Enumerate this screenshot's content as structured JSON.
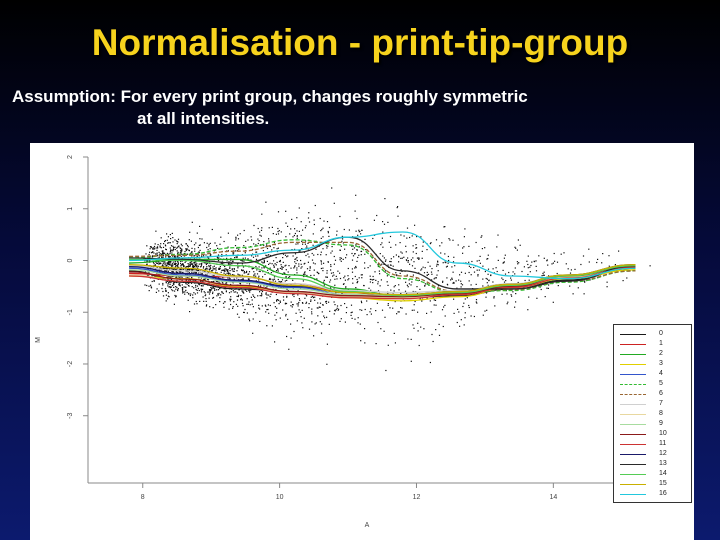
{
  "slide": {
    "title": "Normalisation - print-tip-group",
    "assumption_line1": "Assumption: For every print group, changes roughly symmetric",
    "assumption_line2": "at all intensities."
  },
  "colors": {
    "title": "#f7d31d",
    "text": "#ffffff",
    "panel": "#ffffff"
  },
  "chart_data": {
    "type": "scatter",
    "xlabel": "A",
    "ylabel": "M",
    "xlim": [
      7.2,
      15.5
    ],
    "ylim": [
      -4.3,
      2.0
    ],
    "xticks": [
      8,
      10,
      12,
      14
    ],
    "yticks": [
      2,
      1,
      0,
      -1,
      -2,
      -3
    ],
    "xtick_labels": [
      "8",
      "10",
      "12",
      "14"
    ],
    "ytick_labels": [
      "2",
      "1",
      "0",
      "-1",
      "-2",
      "-3"
    ],
    "grid": false,
    "legend_position": "right",
    "series": [
      {
        "name": "0",
        "color": "#1a1a1a",
        "dash": "solid",
        "x": [
          7.8,
          8.6,
          9.4,
          10.2,
          11.0,
          11.8,
          12.6,
          13.4,
          14.2,
          15.2
        ],
        "y": [
          -0.2,
          -0.42,
          -0.55,
          -0.6,
          -0.7,
          -0.72,
          -0.68,
          -0.55,
          -0.38,
          -0.15
        ]
      },
      {
        "name": "1",
        "color": "#cc2222",
        "dash": "solid",
        "x": [
          7.8,
          8.6,
          9.4,
          10.2,
          11.0,
          11.8,
          12.6,
          13.4,
          14.2,
          15.2
        ],
        "y": [
          -0.25,
          -0.3,
          -0.32,
          -0.45,
          -0.62,
          -0.72,
          -0.66,
          -0.5,
          -0.32,
          -0.12
        ]
      },
      {
        "name": "2",
        "color": "#22aa22",
        "dash": "solid",
        "x": [
          7.8,
          8.6,
          9.4,
          10.2,
          11.0,
          11.8,
          12.6,
          13.4,
          14.2,
          15.2
        ],
        "y": [
          -0.05,
          0.02,
          0.02,
          -0.28,
          -0.55,
          -0.7,
          -0.65,
          -0.52,
          -0.35,
          -0.15
        ]
      },
      {
        "name": "3",
        "color": "#e0d000",
        "dash": "solid",
        "x": [
          7.8,
          8.6,
          9.4,
          10.2,
          11.0,
          11.8,
          12.6,
          13.4,
          14.2,
          15.2
        ],
        "y": [
          -0.3,
          -0.35,
          -0.5,
          -0.62,
          -0.72,
          -0.78,
          -0.7,
          -0.52,
          -0.35,
          -0.18
        ]
      },
      {
        "name": "4",
        "color": "#3355cc",
        "dash": "solid",
        "x": [
          7.8,
          8.6,
          9.4,
          10.2,
          11.0,
          11.8,
          12.6,
          13.4,
          14.2,
          15.2
        ],
        "y": [
          -0.15,
          -0.28,
          -0.4,
          -0.52,
          -0.66,
          -0.7,
          -0.64,
          -0.48,
          -0.3,
          -0.1
        ]
      },
      {
        "name": "5",
        "color": "#33bb33",
        "dash": "dashed",
        "x": [
          7.8,
          8.6,
          9.4,
          10.2,
          11.0,
          11.8,
          12.6,
          13.4,
          14.2,
          15.2
        ],
        "y": [
          0.05,
          0.12,
          0.25,
          0.4,
          0.3,
          -0.35,
          -0.62,
          -0.58,
          -0.42,
          -0.2
        ]
      },
      {
        "name": "6",
        "color": "#996633",
        "dash": "dashed",
        "x": [
          7.8,
          8.6,
          9.4,
          10.2,
          11.0,
          11.8,
          12.6,
          13.4,
          14.2,
          15.2
        ],
        "y": [
          0.08,
          0.1,
          0.18,
          0.35,
          0.35,
          -0.3,
          -0.6,
          -0.56,
          -0.4,
          -0.2
        ]
      },
      {
        "name": "7",
        "color": "#d0d0d0",
        "dash": "solid",
        "x": [
          7.8,
          8.6,
          9.4,
          10.2,
          11.0,
          11.8,
          12.6,
          13.4,
          14.2,
          15.2
        ],
        "y": [
          -0.1,
          -0.2,
          -0.32,
          -0.45,
          -0.58,
          -0.62,
          -0.58,
          -0.45,
          -0.28,
          -0.1
        ]
      },
      {
        "name": "8",
        "color": "#e8d8a0",
        "dash": "solid",
        "x": [
          7.8,
          8.6,
          9.4,
          10.2,
          11.0,
          11.8,
          12.6,
          13.4,
          14.2,
          15.2
        ],
        "y": [
          -0.28,
          -0.4,
          -0.52,
          -0.62,
          -0.7,
          -0.72,
          -0.66,
          -0.5,
          -0.32,
          -0.12
        ]
      },
      {
        "name": "9",
        "color": "#a8dca0",
        "dash": "solid",
        "x": [
          7.8,
          8.6,
          9.4,
          10.2,
          11.0,
          11.8,
          12.6,
          13.4,
          14.2,
          15.2
        ],
        "y": [
          -0.18,
          -0.3,
          -0.42,
          -0.55,
          -0.66,
          -0.68,
          -0.62,
          -0.48,
          -0.3,
          -0.1
        ]
      },
      {
        "name": "10",
        "color": "#8b1a1a",
        "dash": "solid",
        "x": [
          7.8,
          8.6,
          9.4,
          10.2,
          11.0,
          11.8,
          12.6,
          13.4,
          14.2,
          15.2
        ],
        "y": [
          -0.22,
          -0.36,
          -0.48,
          -0.6,
          -0.68,
          -0.7,
          -0.64,
          -0.5,
          -0.3,
          -0.12
        ]
      },
      {
        "name": "11",
        "color": "#cc3333",
        "dash": "solid",
        "x": [
          7.8,
          8.6,
          9.4,
          10.2,
          11.0,
          11.8,
          12.6,
          13.4,
          14.2,
          15.2
        ],
        "y": [
          -0.3,
          -0.4,
          -0.52,
          -0.64,
          -0.72,
          -0.74,
          -0.66,
          -0.52,
          -0.34,
          -0.14
        ]
      },
      {
        "name": "12",
        "color": "#1a1a6a",
        "dash": "solid",
        "x": [
          7.8,
          8.6,
          9.4,
          10.2,
          11.0,
          11.8,
          12.6,
          13.4,
          14.2,
          15.2
        ],
        "y": [
          -0.12,
          -0.25,
          -0.38,
          -0.5,
          -0.62,
          -0.66,
          -0.6,
          -0.46,
          -0.28,
          -0.08
        ]
      },
      {
        "name": "13",
        "color": "#2a2a2a",
        "dash": "solid",
        "x": [
          7.8,
          8.6,
          9.4,
          10.2,
          11.0,
          11.8,
          12.6,
          13.4,
          14.2,
          15.2
        ],
        "y": [
          0.05,
          0.02,
          -0.05,
          0.15,
          0.45,
          -0.2,
          -0.55,
          -0.55,
          -0.4,
          -0.1
        ]
      },
      {
        "name": "14",
        "color": "#55cc55",
        "dash": "solid",
        "x": [
          7.8,
          8.6,
          9.4,
          10.2,
          11.0,
          11.8,
          12.6,
          13.4,
          14.2,
          15.2
        ],
        "y": [
          0.02,
          0.0,
          -0.1,
          -0.35,
          -0.6,
          -0.68,
          -0.62,
          -0.48,
          -0.3,
          -0.1
        ]
      },
      {
        "name": "15",
        "color": "#c8b000",
        "dash": "solid",
        "x": [
          7.8,
          8.6,
          9.4,
          10.2,
          11.0,
          11.8,
          12.6,
          13.4,
          14.2,
          15.2
        ],
        "y": [
          -0.08,
          -0.15,
          -0.3,
          -0.48,
          -0.62,
          -0.66,
          -0.6,
          -0.46,
          -0.28,
          -0.08
        ]
      },
      {
        "name": "16",
        "color": "#22c8dd",
        "dash": "solid",
        "x": [
          7.8,
          8.6,
          9.4,
          10.2,
          11.0,
          11.8,
          12.6,
          13.4,
          14.2,
          15.2
        ],
        "y": [
          0.0,
          0.05,
          0.1,
          0.2,
          0.45,
          0.55,
          -0.05,
          -0.3,
          -0.35,
          -0.15
        ]
      }
    ]
  }
}
